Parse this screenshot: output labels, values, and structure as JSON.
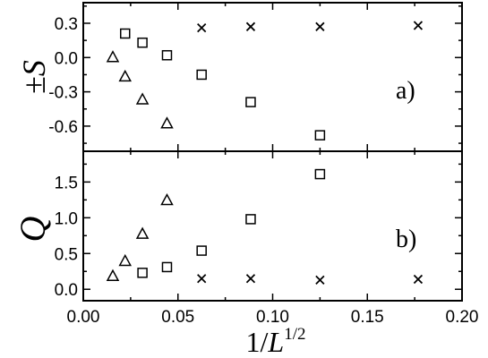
{
  "chart_data": [
    {
      "type": "scatter",
      "panel_label": "a)",
      "ylabel_prefix": "±",
      "ylabel": "S",
      "xlim": [
        0.0,
        0.2
      ],
      "ylim": [
        -0.82,
        0.48
      ],
      "yticks": [
        0.3,
        0.0,
        -0.3,
        -0.6
      ],
      "ytick_labels": [
        "0.3",
        "0.0",
        "-0.3",
        "-0.6"
      ],
      "grid": false,
      "series": [
        {
          "marker": "triangle",
          "x": [
            0.0156,
            0.0221,
            0.03125,
            0.0442
          ],
          "y": [
            0.0,
            -0.17,
            -0.37,
            -0.58
          ]
        },
        {
          "marker": "square",
          "x": [
            0.0221,
            0.03125,
            0.0442,
            0.0625,
            0.0884,
            0.125
          ],
          "y": [
            0.21,
            0.13,
            0.02,
            -0.15,
            -0.39,
            -0.68
          ]
        },
        {
          "marker": "cross",
          "x": [
            0.0625,
            0.0884,
            0.125,
            0.1768
          ],
          "y": [
            0.26,
            0.27,
            0.27,
            0.28
          ]
        }
      ]
    },
    {
      "type": "scatter",
      "panel_label": "b)",
      "ylabel": "Q",
      "xlabel_base": "1/",
      "xlabel_var": "L",
      "xlabel_sup": "1/2",
      "xlim": [
        0.0,
        0.2
      ],
      "ylim": [
        -0.16,
        1.93
      ],
      "xticks": [
        0.0,
        0.05,
        0.1,
        0.15,
        0.2
      ],
      "xtick_labels": [
        "0.00",
        "0.05",
        "0.10",
        "0.15",
        "0.20"
      ],
      "yticks": [
        1.5,
        1.0,
        0.5,
        0.0
      ],
      "ytick_labels": [
        "1.5",
        "1.0",
        "0.5",
        "0.0"
      ],
      "grid": false,
      "series": [
        {
          "marker": "triangle",
          "x": [
            0.0156,
            0.0221,
            0.03125,
            0.0442
          ],
          "y": [
            0.18,
            0.39,
            0.77,
            1.24
          ]
        },
        {
          "marker": "square",
          "x": [
            0.03125,
            0.0442,
            0.0625,
            0.0884,
            0.125
          ],
          "y": [
            0.23,
            0.31,
            0.54,
            0.98,
            1.61
          ]
        },
        {
          "marker": "cross",
          "x": [
            0.0625,
            0.0884,
            0.125,
            0.1768
          ],
          "y": [
            0.15,
            0.15,
            0.13,
            0.14
          ]
        }
      ]
    }
  ]
}
